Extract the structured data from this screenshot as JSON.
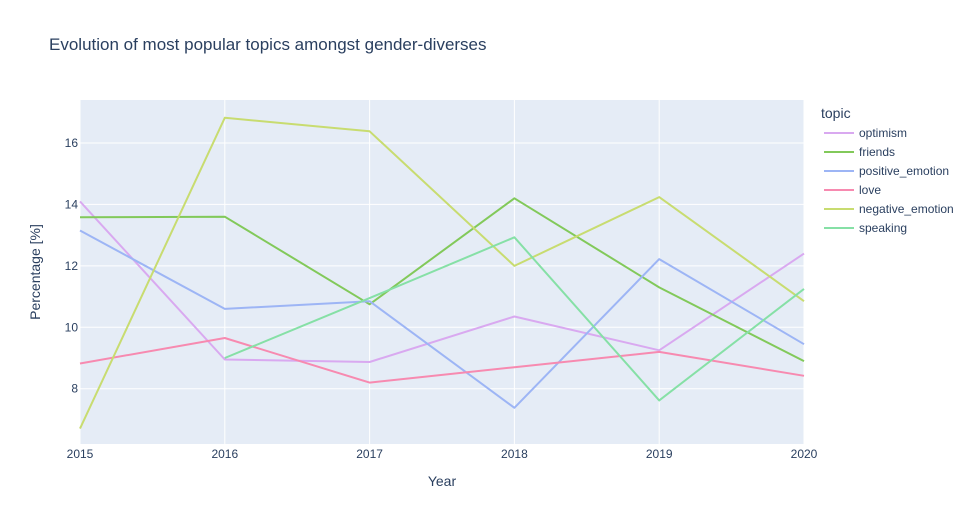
{
  "chart_data": {
    "type": "line",
    "title": "Evolution of most popular topics amongst gender-diverses",
    "xlabel": "Year",
    "ylabel": "Percentage [%]",
    "x": [
      2015,
      2016,
      2017,
      2018,
      2019,
      2020
    ],
    "xlim": [
      2015,
      2020
    ],
    "ylim": [
      6.2,
      17.4
    ],
    "yticks": [
      8,
      10,
      12,
      14,
      16
    ],
    "grid": true,
    "legend_title": "topic",
    "legend_position": "right",
    "series": [
      {
        "name": "optimism",
        "color": "#d9a9f0",
        "values": [
          14.1,
          8.95,
          8.87,
          10.35,
          9.25,
          12.4
        ]
      },
      {
        "name": "friends",
        "color": "#82c95a",
        "values": [
          13.58,
          13.6,
          10.75,
          14.2,
          11.3,
          8.9
        ]
      },
      {
        "name": "positive_emotion",
        "color": "#9db5f5",
        "values": [
          13.15,
          10.6,
          10.85,
          7.38,
          12.22,
          9.45
        ]
      },
      {
        "name": "love",
        "color": "#f78ab0",
        "values": [
          8.82,
          9.65,
          8.2,
          8.7,
          9.2,
          8.42
        ]
      },
      {
        "name": "negative_emotion",
        "color": "#c8dc70",
        "values": [
          6.7,
          16.82,
          16.38,
          12.0,
          14.24,
          10.85
        ]
      },
      {
        "name": "speaking",
        "color": "#86e0a6",
        "values": [
          null,
          9.0,
          10.95,
          12.93,
          7.62,
          11.25
        ]
      }
    ]
  }
}
